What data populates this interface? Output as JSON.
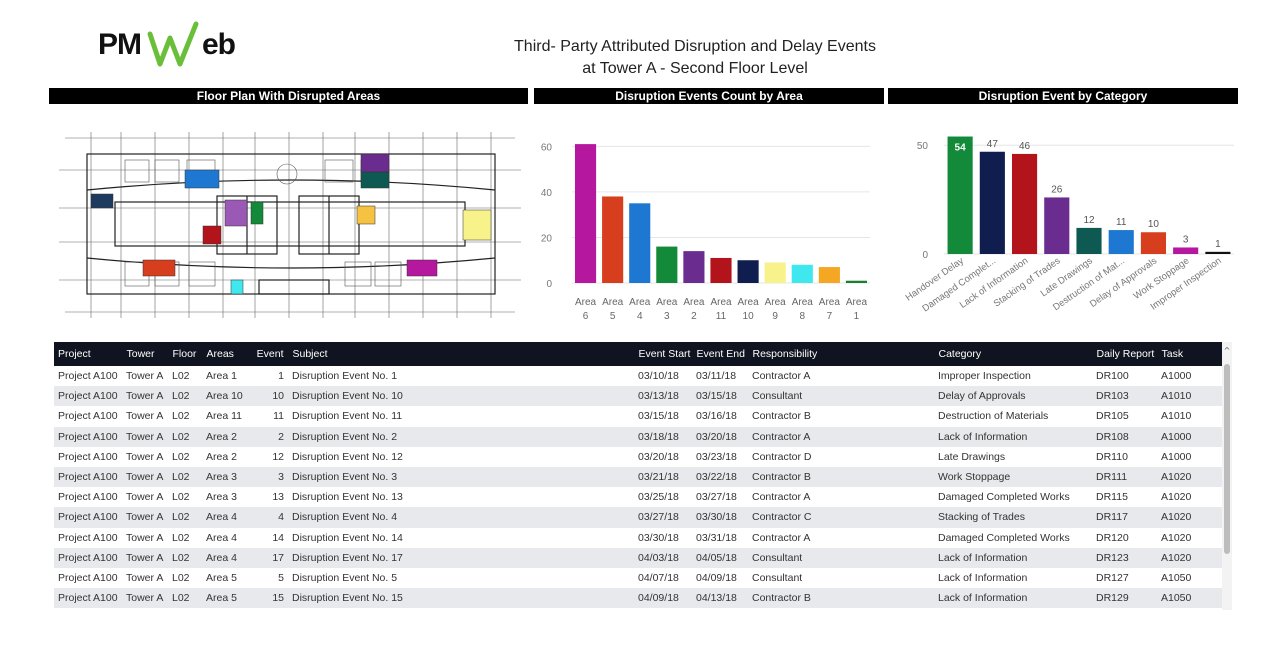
{
  "logo": {
    "text_a": "PM",
    "text_b": "eb",
    "w_color": "#6abf3a"
  },
  "title": {
    "line1": "Third- Party Attributed Disruption and Delay Events",
    "line2": "at Tower A - Second Floor Level"
  },
  "sections": {
    "floor_plan": "Floor Plan With Disrupted Areas",
    "count_by_area": "Disruption Events Count by Area",
    "by_category": "Disruption Event by Category"
  },
  "chart_data": [
    {
      "type": "bar",
      "title": "Disruption Events Count by Area",
      "categories": [
        "Area 6",
        "Area 5",
        "Area 4",
        "Area 3",
        "Area 2",
        "Area 11",
        "Area 10",
        "Area 9",
        "Area 8",
        "Area 7",
        "Area 1"
      ],
      "category_lines": [
        [
          "Area",
          "6"
        ],
        [
          "Area",
          "5"
        ],
        [
          "Area",
          "4"
        ],
        [
          "Area",
          "3"
        ],
        [
          "Area",
          "2"
        ],
        [
          "Area",
          "11"
        ],
        [
          "Area",
          "10"
        ],
        [
          "Area",
          "9"
        ],
        [
          "Area",
          "8"
        ],
        [
          "Area",
          "7"
        ],
        [
          "Area",
          "1"
        ]
      ],
      "values": [
        61,
        38,
        35,
        16,
        14,
        11,
        10,
        9,
        8,
        7,
        1
      ],
      "colors": [
        "#b5179e",
        "#d63e1e",
        "#1e78d2",
        "#138a3a",
        "#6a2d8f",
        "#b3141c",
        "#0f1e4e",
        "#f7f28a",
        "#3ee8ee",
        "#f5a623",
        "#1a7f2e"
      ],
      "ylim": [
        0,
        65
      ],
      "yticks": [
        "0",
        "20",
        "40",
        "60"
      ],
      "grid": true
    },
    {
      "type": "bar",
      "title": "Disruption Event by Category",
      "categories": [
        "Handover Delay",
        "Damaged Complet...",
        "Lack of Information",
        "Stacking of Trades",
        "Late Drawings",
        "Destruction of Mat...",
        "Delay of Approvals",
        "Work Stoppage",
        "Improper Inspection"
      ],
      "values": [
        54,
        47,
        46,
        26,
        12,
        11,
        10,
        3,
        1
      ],
      "value_labels": [
        "54",
        "47",
        "46",
        "26",
        "12",
        "11",
        "10",
        "3",
        "1"
      ],
      "colors": [
        "#138a3a",
        "#0f1e4e",
        "#b3141c",
        "#6a2d8f",
        "#0e5a52",
        "#1e78d2",
        "#d63e1e",
        "#b5179e",
        "#111111"
      ],
      "ylim": [
        0,
        57
      ],
      "yticks": [
        "0",
        "50"
      ],
      "grid": true
    }
  ],
  "table": {
    "headers": [
      "Project",
      "Tower",
      "Floor",
      "Areas",
      "Event",
      "Subject",
      "Event Start",
      "Event End",
      "Responsibility",
      "Category",
      "Daily Report",
      "Task"
    ],
    "rows": [
      [
        "Project A100",
        "Tower A",
        "L02",
        "Area 1",
        "1",
        "Disruption Event No. 1",
        "03/10/18",
        "03/11/18",
        "Contractor A",
        "Improper Inspection",
        "DR100",
        "A1000"
      ],
      [
        "Project A100",
        "Tower A",
        "L02",
        "Area 10",
        "10",
        "Disruption Event No. 10",
        "03/13/18",
        "03/15/18",
        "Consultant",
        "Delay of Approvals",
        "DR103",
        "A1010"
      ],
      [
        "Project A100",
        "Tower A",
        "L02",
        "Area 11",
        "11",
        "Disruption Event No. 11",
        "03/15/18",
        "03/16/18",
        "Contractor B",
        "Destruction of Materials",
        "DR105",
        "A1010"
      ],
      [
        "Project A100",
        "Tower A",
        "L02",
        "Area 2",
        "2",
        "Disruption Event No. 2",
        "03/18/18",
        "03/20/18",
        "Contractor A",
        "Lack of Information",
        "DR108",
        "A1000"
      ],
      [
        "Project A100",
        "Tower A",
        "L02",
        "Area 2",
        "12",
        "Disruption Event No. 12",
        "03/20/18",
        "03/23/18",
        "Contractor D",
        "Late Drawings",
        "DR110",
        "A1000"
      ],
      [
        "Project A100",
        "Tower A",
        "L02",
        "Area 3",
        "3",
        "Disruption Event No. 3",
        "03/21/18",
        "03/22/18",
        "Contractor B",
        "Work Stoppage",
        "DR111",
        "A1020"
      ],
      [
        "Project A100",
        "Tower A",
        "L02",
        "Area 3",
        "13",
        "Disruption Event No. 13",
        "03/25/18",
        "03/27/18",
        "Contractor A",
        "Damaged Completed Works",
        "DR115",
        "A1020"
      ],
      [
        "Project A100",
        "Tower A",
        "L02",
        "Area 4",
        "4",
        "Disruption Event No. 4",
        "03/27/18",
        "03/30/18",
        "Contractor C",
        "Stacking of Trades",
        "DR117",
        "A1020"
      ],
      [
        "Project A100",
        "Tower A",
        "L02",
        "Area 4",
        "14",
        "Disruption Event No. 14",
        "03/30/18",
        "03/31/18",
        "Contractor A",
        "Damaged Completed Works",
        "DR120",
        "A1020"
      ],
      [
        "Project A100",
        "Tower A",
        "L02",
        "Area 4",
        "17",
        "Disruption Event No. 17",
        "04/03/18",
        "04/05/18",
        "Consultant",
        "Lack of Information",
        "DR123",
        "A1020"
      ],
      [
        "Project A100",
        "Tower A",
        "L02",
        "Area 5",
        "5",
        "Disruption Event No. 5",
        "04/07/18",
        "04/09/18",
        "Consultant",
        "Lack of Information",
        "DR127",
        "A1050"
      ],
      [
        "Project A100",
        "Tower A",
        "L02",
        "Area 5",
        "15",
        "Disruption Event No. 15",
        "04/09/18",
        "04/13/18",
        "Contractor B",
        "Lack of Information",
        "DR129",
        "A1050"
      ]
    ]
  },
  "floor_plan": {
    "area_colors": [
      "#1e78d2",
      "#6a2d8f",
      "#0e5a52",
      "#1f3a5f",
      "#b3141c",
      "#138a3a",
      "#f5c242",
      "#f7f28a",
      "#d63e1e",
      "#3ee8ee",
      "#b5179e",
      "#9b59b6"
    ]
  },
  "scroll": {
    "up_arrow": "^"
  }
}
